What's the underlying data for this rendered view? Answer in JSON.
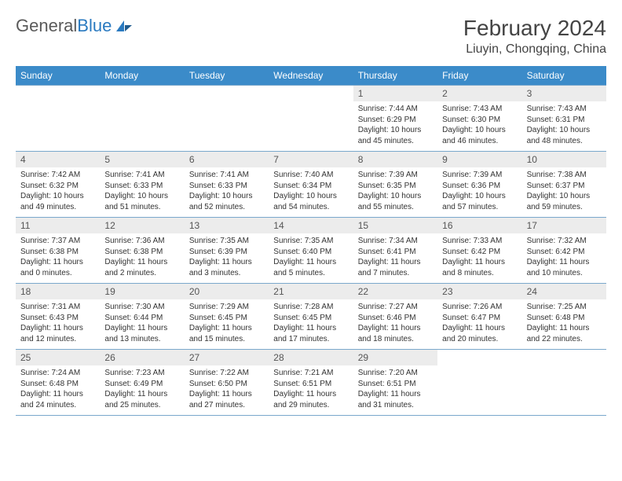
{
  "brand": {
    "name_part1": "General",
    "name_part2": "Blue"
  },
  "title": "February 2024",
  "location": "Liuyin, Chongqing, China",
  "colors": {
    "header_bg": "#3b8bc9",
    "header_text": "#ffffff",
    "daynum_bg": "#ececec",
    "border": "#7aa8cc",
    "text": "#333333",
    "brand_gray": "#5a5a5a",
    "brand_blue": "#2a7ac0"
  },
  "day_names": [
    "Sunday",
    "Monday",
    "Tuesday",
    "Wednesday",
    "Thursday",
    "Friday",
    "Saturday"
  ],
  "weeks": [
    [
      {
        "n": "",
        "sr": "",
        "ss": "",
        "dl": ""
      },
      {
        "n": "",
        "sr": "",
        "ss": "",
        "dl": ""
      },
      {
        "n": "",
        "sr": "",
        "ss": "",
        "dl": ""
      },
      {
        "n": "",
        "sr": "",
        "ss": "",
        "dl": ""
      },
      {
        "n": "1",
        "sr": "Sunrise: 7:44 AM",
        "ss": "Sunset: 6:29 PM",
        "dl": "Daylight: 10 hours and 45 minutes."
      },
      {
        "n": "2",
        "sr": "Sunrise: 7:43 AM",
        "ss": "Sunset: 6:30 PM",
        "dl": "Daylight: 10 hours and 46 minutes."
      },
      {
        "n": "3",
        "sr": "Sunrise: 7:43 AM",
        "ss": "Sunset: 6:31 PM",
        "dl": "Daylight: 10 hours and 48 minutes."
      }
    ],
    [
      {
        "n": "4",
        "sr": "Sunrise: 7:42 AM",
        "ss": "Sunset: 6:32 PM",
        "dl": "Daylight: 10 hours and 49 minutes."
      },
      {
        "n": "5",
        "sr": "Sunrise: 7:41 AM",
        "ss": "Sunset: 6:33 PM",
        "dl": "Daylight: 10 hours and 51 minutes."
      },
      {
        "n": "6",
        "sr": "Sunrise: 7:41 AM",
        "ss": "Sunset: 6:33 PM",
        "dl": "Daylight: 10 hours and 52 minutes."
      },
      {
        "n": "7",
        "sr": "Sunrise: 7:40 AM",
        "ss": "Sunset: 6:34 PM",
        "dl": "Daylight: 10 hours and 54 minutes."
      },
      {
        "n": "8",
        "sr": "Sunrise: 7:39 AM",
        "ss": "Sunset: 6:35 PM",
        "dl": "Daylight: 10 hours and 55 minutes."
      },
      {
        "n": "9",
        "sr": "Sunrise: 7:39 AM",
        "ss": "Sunset: 6:36 PM",
        "dl": "Daylight: 10 hours and 57 minutes."
      },
      {
        "n": "10",
        "sr": "Sunrise: 7:38 AM",
        "ss": "Sunset: 6:37 PM",
        "dl": "Daylight: 10 hours and 59 minutes."
      }
    ],
    [
      {
        "n": "11",
        "sr": "Sunrise: 7:37 AM",
        "ss": "Sunset: 6:38 PM",
        "dl": "Daylight: 11 hours and 0 minutes."
      },
      {
        "n": "12",
        "sr": "Sunrise: 7:36 AM",
        "ss": "Sunset: 6:38 PM",
        "dl": "Daylight: 11 hours and 2 minutes."
      },
      {
        "n": "13",
        "sr": "Sunrise: 7:35 AM",
        "ss": "Sunset: 6:39 PM",
        "dl": "Daylight: 11 hours and 3 minutes."
      },
      {
        "n": "14",
        "sr": "Sunrise: 7:35 AM",
        "ss": "Sunset: 6:40 PM",
        "dl": "Daylight: 11 hours and 5 minutes."
      },
      {
        "n": "15",
        "sr": "Sunrise: 7:34 AM",
        "ss": "Sunset: 6:41 PM",
        "dl": "Daylight: 11 hours and 7 minutes."
      },
      {
        "n": "16",
        "sr": "Sunrise: 7:33 AM",
        "ss": "Sunset: 6:42 PM",
        "dl": "Daylight: 11 hours and 8 minutes."
      },
      {
        "n": "17",
        "sr": "Sunrise: 7:32 AM",
        "ss": "Sunset: 6:42 PM",
        "dl": "Daylight: 11 hours and 10 minutes."
      }
    ],
    [
      {
        "n": "18",
        "sr": "Sunrise: 7:31 AM",
        "ss": "Sunset: 6:43 PM",
        "dl": "Daylight: 11 hours and 12 minutes."
      },
      {
        "n": "19",
        "sr": "Sunrise: 7:30 AM",
        "ss": "Sunset: 6:44 PM",
        "dl": "Daylight: 11 hours and 13 minutes."
      },
      {
        "n": "20",
        "sr": "Sunrise: 7:29 AM",
        "ss": "Sunset: 6:45 PM",
        "dl": "Daylight: 11 hours and 15 minutes."
      },
      {
        "n": "21",
        "sr": "Sunrise: 7:28 AM",
        "ss": "Sunset: 6:45 PM",
        "dl": "Daylight: 11 hours and 17 minutes."
      },
      {
        "n": "22",
        "sr": "Sunrise: 7:27 AM",
        "ss": "Sunset: 6:46 PM",
        "dl": "Daylight: 11 hours and 18 minutes."
      },
      {
        "n": "23",
        "sr": "Sunrise: 7:26 AM",
        "ss": "Sunset: 6:47 PM",
        "dl": "Daylight: 11 hours and 20 minutes."
      },
      {
        "n": "24",
        "sr": "Sunrise: 7:25 AM",
        "ss": "Sunset: 6:48 PM",
        "dl": "Daylight: 11 hours and 22 minutes."
      }
    ],
    [
      {
        "n": "25",
        "sr": "Sunrise: 7:24 AM",
        "ss": "Sunset: 6:48 PM",
        "dl": "Daylight: 11 hours and 24 minutes."
      },
      {
        "n": "26",
        "sr": "Sunrise: 7:23 AM",
        "ss": "Sunset: 6:49 PM",
        "dl": "Daylight: 11 hours and 25 minutes."
      },
      {
        "n": "27",
        "sr": "Sunrise: 7:22 AM",
        "ss": "Sunset: 6:50 PM",
        "dl": "Daylight: 11 hours and 27 minutes."
      },
      {
        "n": "28",
        "sr": "Sunrise: 7:21 AM",
        "ss": "Sunset: 6:51 PM",
        "dl": "Daylight: 11 hours and 29 minutes."
      },
      {
        "n": "29",
        "sr": "Sunrise: 7:20 AM",
        "ss": "Sunset: 6:51 PM",
        "dl": "Daylight: 11 hours and 31 minutes."
      },
      {
        "n": "",
        "sr": "",
        "ss": "",
        "dl": ""
      },
      {
        "n": "",
        "sr": "",
        "ss": "",
        "dl": ""
      }
    ]
  ]
}
